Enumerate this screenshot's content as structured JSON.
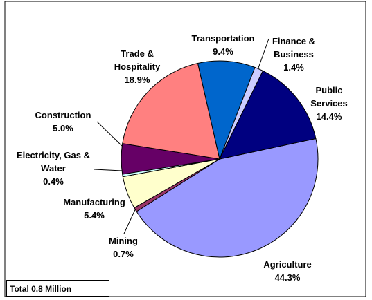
{
  "chart_data": {
    "type": "pie",
    "categories": [
      "Agriculture",
      "Mining",
      "Manufacturing",
      "Electricity, Gas & Water",
      "Construction",
      "Trade & Hospitality",
      "Transportation",
      "Finance & Business",
      "Public Services"
    ],
    "values": [
      44.3,
      0.7,
      5.4,
      0.4,
      5.0,
      18.9,
      9.4,
      1.4,
      14.4
    ],
    "value_labels": [
      "44.3%",
      "0.7%",
      "5.4%",
      "0.4%",
      "5.0%",
      "18.9%",
      "9.4%",
      "1.4%",
      "14.4%"
    ],
    "colors": [
      "#9999ff",
      "#993366",
      "#ffffcc",
      "#ccffff",
      "#660066",
      "#ff8080",
      "#0066cc",
      "#ccccff",
      "#000080"
    ],
    "annotation": "Total 0.8 Million"
  }
}
